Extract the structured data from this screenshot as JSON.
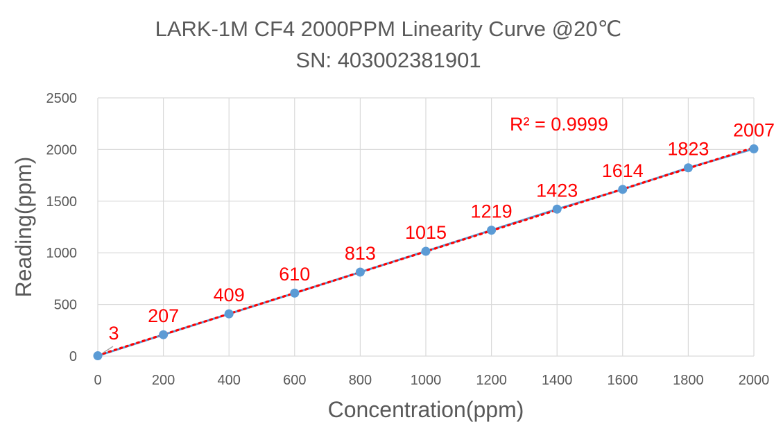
{
  "chart_data": {
    "type": "scatter",
    "title": "LARK-1M CF4 2000PPM Linearity Curve @20℃",
    "subtitle": "SN: 403002381901",
    "xlabel": "Concentration(ppm)",
    "ylabel": "Reading(ppm)",
    "xlim": [
      0,
      2000
    ],
    "ylim": [
      0,
      2500
    ],
    "x_ticks": [
      "0",
      "200",
      "400",
      "600",
      "800",
      "1000",
      "1200",
      "1400",
      "1600",
      "1800",
      "2000"
    ],
    "y_ticks": [
      "0",
      "500",
      "1000",
      "1500",
      "2000",
      "2500"
    ],
    "grid": true,
    "series": [
      {
        "x": [
          0,
          200,
          400,
          600,
          800,
          1000,
          1200,
          1400,
          1600,
          1800,
          2000
        ],
        "y": [
          3,
          207,
          409,
          610,
          813,
          1015,
          1219,
          1423,
          1614,
          1823,
          2007
        ],
        "labels": [
          "3",
          "207",
          "409",
          "610",
          "813",
          "1015",
          "1219",
          "1423",
          "1614",
          "1823",
          "2007"
        ],
        "color": "#5b9bd5"
      }
    ],
    "trendline": {
      "type": "linear",
      "color": "#ff0000",
      "r2_label": "R² = 0.9999"
    },
    "label_color": "#ff0000"
  }
}
